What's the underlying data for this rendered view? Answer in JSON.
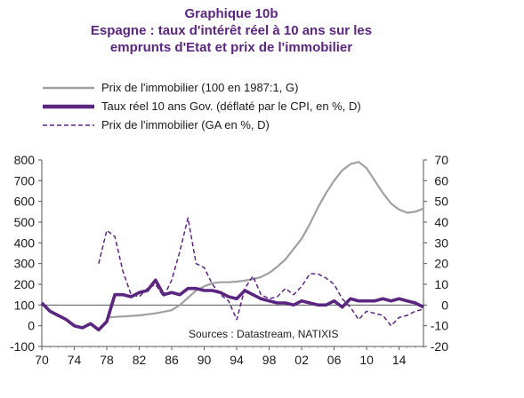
{
  "chart_data": {
    "type": "line",
    "title": "Graphique 10b",
    "subtitle_lines": [
      "Espagne : taux d'intérêt réel à 10 ans sur les",
      "emprunts d'Etat et prix de l'immobilier"
    ],
    "source": "Sources : Datastream, NATIXIS",
    "xlim": [
      70,
      117
    ],
    "x_ticks": [
      "70",
      "74",
      "78",
      "82",
      "86",
      "90",
      "94",
      "98",
      "02",
      "06",
      "10",
      "14"
    ],
    "y_left": {
      "lim": [
        -100,
        800
      ],
      "ticks": [
        "800",
        "700",
        "600",
        "500",
        "400",
        "300",
        "200",
        "100",
        "0",
        "-100"
      ]
    },
    "y_right": {
      "lim": [
        -20,
        70
      ],
      "ticks": [
        "70",
        "60",
        "50",
        "40",
        "30",
        "20",
        "10",
        "0",
        "-10",
        "-20"
      ]
    },
    "zero_line_right": 0,
    "grid": false,
    "legend_position": "top-left",
    "series": [
      {
        "name": "Prix de l'immobilier (100 en 1987:1, G)",
        "axis": "left",
        "style": "solid-thin",
        "color": "#a0a0a0",
        "points": [
          [
            78,
            40
          ],
          [
            80,
            45
          ],
          [
            82,
            50
          ],
          [
            84,
            60
          ],
          [
            86,
            75
          ],
          [
            87,
            100
          ],
          [
            88,
            135
          ],
          [
            89,
            170
          ],
          [
            90,
            190
          ],
          [
            91,
            205
          ],
          [
            92,
            210
          ],
          [
            93,
            210
          ],
          [
            94,
            213
          ],
          [
            95,
            218
          ],
          [
            96,
            225
          ],
          [
            97,
            235
          ],
          [
            98,
            255
          ],
          [
            99,
            285
          ],
          [
            100,
            320
          ],
          [
            101,
            370
          ],
          [
            102,
            420
          ],
          [
            103,
            490
          ],
          [
            104,
            570
          ],
          [
            105,
            640
          ],
          [
            106,
            700
          ],
          [
            107,
            750
          ],
          [
            108,
            780
          ],
          [
            109,
            790
          ],
          [
            110,
            760
          ],
          [
            111,
            700
          ],
          [
            112,
            640
          ],
          [
            113,
            590
          ],
          [
            114,
            560
          ],
          [
            115,
            545
          ],
          [
            116,
            550
          ],
          [
            117,
            565
          ]
        ]
      },
      {
        "name": "Taux réel 10 ans Gov. (déflaté par le CPI, en %, D)",
        "axis": "right",
        "style": "solid-thick",
        "color": "#5b2680",
        "points": [
          [
            70,
            1
          ],
          [
            71,
            -3
          ],
          [
            72,
            -5
          ],
          [
            73,
            -7
          ],
          [
            74,
            -10
          ],
          [
            75,
            -11
          ],
          [
            76,
            -9
          ],
          [
            77,
            -12
          ],
          [
            78,
            -8
          ],
          [
            79,
            5
          ],
          [
            80,
            5
          ],
          [
            81,
            4
          ],
          [
            82,
            6
          ],
          [
            83,
            7
          ],
          [
            84,
            12
          ],
          [
            85,
            5
          ],
          [
            86,
            6
          ],
          [
            87,
            5
          ],
          [
            88,
            8
          ],
          [
            89,
            8
          ],
          [
            90,
            7
          ],
          [
            91,
            7
          ],
          [
            92,
            6
          ],
          [
            93,
            4
          ],
          [
            94,
            3
          ],
          [
            95,
            7
          ],
          [
            96,
            5
          ],
          [
            97,
            3
          ],
          [
            98,
            2
          ],
          [
            99,
            1
          ],
          [
            100,
            1
          ],
          [
            101,
            0
          ],
          [
            102,
            2
          ],
          [
            103,
            1
          ],
          [
            104,
            0
          ],
          [
            105,
            0
          ],
          [
            106,
            2
          ],
          [
            107,
            -1
          ],
          [
            108,
            3
          ],
          [
            109,
            2
          ],
          [
            110,
            2
          ],
          [
            111,
            2
          ],
          [
            112,
            3
          ],
          [
            113,
            2
          ],
          [
            114,
            3
          ],
          [
            115,
            2
          ],
          [
            116,
            1
          ],
          [
            117,
            -1
          ]
        ]
      },
      {
        "name": "Prix de l'immobilier (GA en %, D)",
        "axis": "right",
        "style": "dashed",
        "color": "#5b2680",
        "points": [
          [
            77,
            20
          ],
          [
            78,
            36
          ],
          [
            79,
            33
          ],
          [
            80,
            16
          ],
          [
            81,
            5
          ],
          [
            82,
            4
          ],
          [
            83,
            8
          ],
          [
            84,
            10
          ],
          [
            85,
            4
          ],
          [
            86,
            12
          ],
          [
            87,
            26
          ],
          [
            88,
            42
          ],
          [
            89,
            20
          ],
          [
            90,
            18
          ],
          [
            91,
            10
          ],
          [
            92,
            5
          ],
          [
            93,
            2
          ],
          [
            94,
            -7
          ],
          [
            95,
            8
          ],
          [
            96,
            14
          ],
          [
            97,
            5
          ],
          [
            98,
            3
          ],
          [
            99,
            4
          ],
          [
            100,
            8
          ],
          [
            101,
            5
          ],
          [
            102,
            9
          ],
          [
            103,
            15
          ],
          [
            104,
            15
          ],
          [
            105,
            13
          ],
          [
            106,
            10
          ],
          [
            107,
            3
          ],
          [
            108,
            -1
          ],
          [
            109,
            -7
          ],
          [
            110,
            -3
          ],
          [
            111,
            -4
          ],
          [
            112,
            -5
          ],
          [
            113,
            -10
          ],
          [
            114,
            -6
          ],
          [
            115,
            -5
          ],
          [
            116,
            -3
          ],
          [
            117,
            -2
          ]
        ]
      }
    ]
  }
}
